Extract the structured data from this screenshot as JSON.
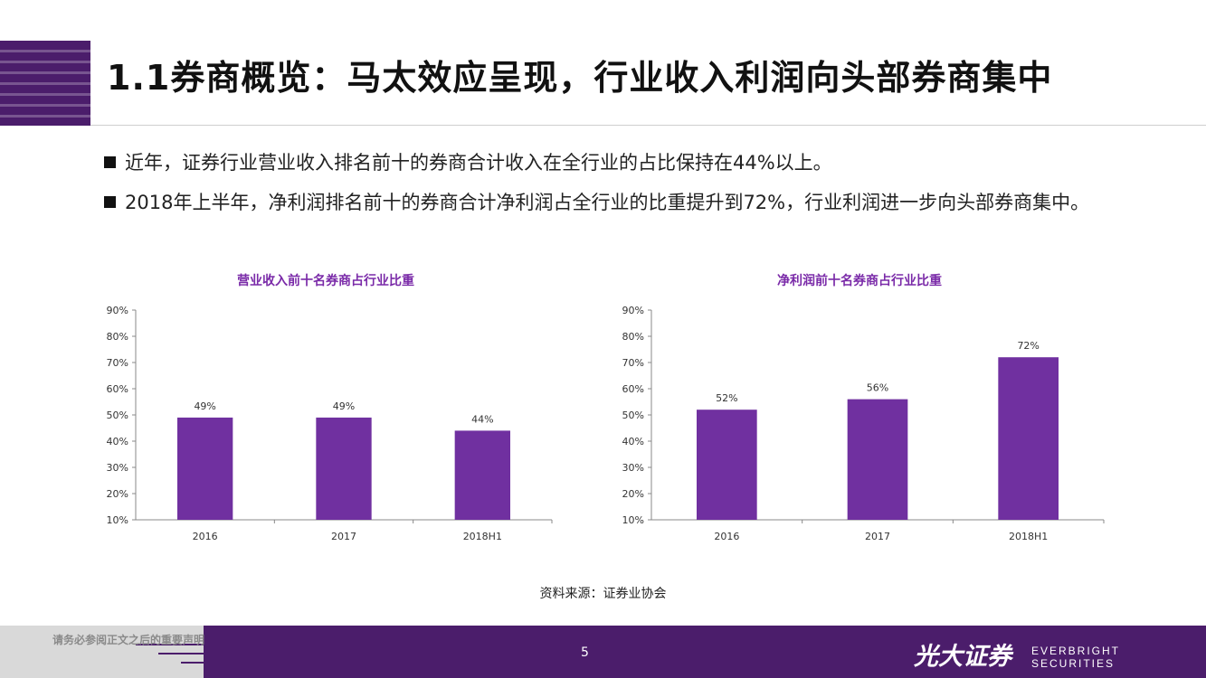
{
  "title": "1.1券商概览：马太效应呈现，行业收入利润向头部券商集中",
  "bullets": [
    "近年，证券行业营业收入排名前十的券商合计收入在全行业的占比保持在44%以上。",
    "2018年上半年，净利润排名前十的券商合计净利润占全行业的比重提升到72%，行业利润进一步向头部券商集中。"
  ],
  "source": "资料来源：证券业协会",
  "footer": {
    "disclaimer": "请务必参阅正文之后的重要声明",
    "page_number": "5",
    "brand_cn": "光大证券",
    "brand_en": "EVERBRIGHT SECURITIES"
  },
  "colors": {
    "bar": "#7030a0",
    "brand_purple": "#4b1d6b",
    "chart_title": "#7a2aa8"
  },
  "chart_data": [
    {
      "type": "bar",
      "title": "营业收入前十名券商占行业比重",
      "categories": [
        "2016",
        "2017",
        "2018H1"
      ],
      "values": [
        49,
        49,
        44
      ],
      "value_labels": [
        "49%",
        "49%",
        "44%"
      ],
      "ylim": [
        10,
        90
      ],
      "yticks": [
        "10%",
        "20%",
        "30%",
        "40%",
        "50%",
        "60%",
        "70%",
        "80%",
        "90%"
      ],
      "grid": false,
      "legend": "none"
    },
    {
      "type": "bar",
      "title": "净利润前十名券商占行业比重",
      "categories": [
        "2016",
        "2017",
        "2018H1"
      ],
      "values": [
        52,
        56,
        72
      ],
      "value_labels": [
        "52%",
        "56%",
        "72%"
      ],
      "ylim": [
        10,
        90
      ],
      "yticks": [
        "10%",
        "20%",
        "30%",
        "40%",
        "50%",
        "60%",
        "70%",
        "80%",
        "90%"
      ],
      "grid": false,
      "legend": "none"
    }
  ]
}
